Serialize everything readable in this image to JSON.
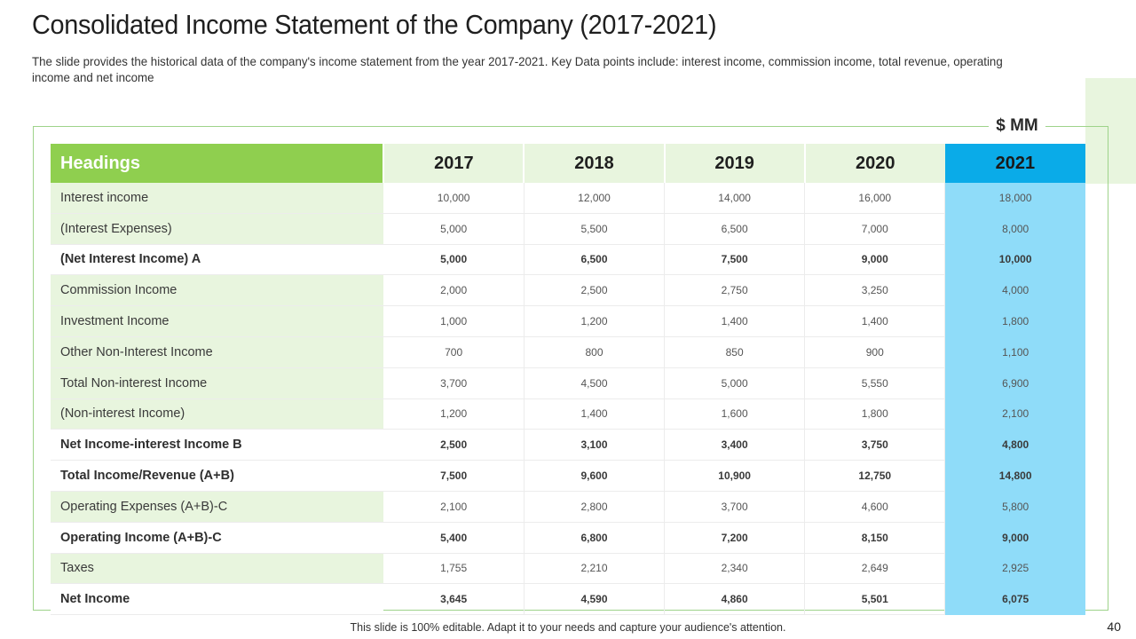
{
  "slide": {
    "title": "Consolidated Income Statement of the Company (2017-2021)",
    "subtitle": "The slide provides the historical data of the company's income statement from the year 2017-2021. Key Data points include: interest income, commission income, total revenue, operating income and net income",
    "unit": "$ MM",
    "footer": "This slide is 100% editable. Adapt it to your needs and capture your audience's attention.",
    "page_number": "40"
  },
  "colors": {
    "header_green": "#8fcf4f",
    "light_green": "#e8f5de",
    "header_blue": "#0aabe8",
    "column_blue": "#8fdcf9",
    "frame_green": "#9ed38a"
  },
  "table": {
    "heading_label": "Headings",
    "years": [
      "2017",
      "2018",
      "2019",
      "2020",
      "2021"
    ],
    "rows": [
      {
        "label": "Interest income",
        "bold": false,
        "values": [
          "10,000",
          "12,000",
          "14,000",
          "16,000",
          "18,000"
        ]
      },
      {
        "label": "(Interest Expenses)",
        "bold": false,
        "values": [
          "5,000",
          "5,500",
          "6,500",
          "7,000",
          "8,000"
        ]
      },
      {
        "label": "(Net Interest Income) A",
        "bold": true,
        "values": [
          "5,000",
          "6,500",
          "7,500",
          "9,000",
          "10,000"
        ]
      },
      {
        "label": "Commission Income",
        "bold": false,
        "values": [
          "2,000",
          "2,500",
          "2,750",
          "3,250",
          "4,000"
        ]
      },
      {
        "label": "Investment Income",
        "bold": false,
        "values": [
          "1,000",
          "1,200",
          "1,400",
          "1,400",
          "1,800"
        ]
      },
      {
        "label": "Other Non-Interest Income",
        "bold": false,
        "values": [
          "700",
          "800",
          "850",
          "900",
          "1,100"
        ]
      },
      {
        "label": "Total Non-interest Income",
        "bold": false,
        "values": [
          "3,700",
          "4,500",
          "5,000",
          "5,550",
          "6,900"
        ]
      },
      {
        "label": "(Non-interest Income)",
        "bold": false,
        "values": [
          "1,200",
          "1,400",
          "1,600",
          "1,800",
          "2,100"
        ]
      },
      {
        "label": "Net Income-interest Income B",
        "bold": true,
        "values": [
          "2,500",
          "3,100",
          "3,400",
          "3,750",
          "4,800"
        ]
      },
      {
        "label": "Total Income/Revenue (A+B)",
        "bold": true,
        "values": [
          "7,500",
          "9,600",
          "10,900",
          "12,750",
          "14,800"
        ]
      },
      {
        "label": "Operating Expenses (A+B)-C",
        "bold": false,
        "values": [
          "2,100",
          "2,800",
          "3,700",
          "4,600",
          "5,800"
        ]
      },
      {
        "label": "Operating Income (A+B)-C",
        "bold": true,
        "values": [
          "5,400",
          "6,800",
          "7,200",
          "8,150",
          "9,000"
        ]
      },
      {
        "label": "Taxes",
        "bold": false,
        "values": [
          "1,755",
          "2,210",
          "2,340",
          "2,649",
          "2,925"
        ]
      },
      {
        "label": "Net Income",
        "bold": true,
        "values": [
          "3,645",
          "4,590",
          "4,860",
          "5,501",
          "6,075"
        ]
      }
    ]
  }
}
